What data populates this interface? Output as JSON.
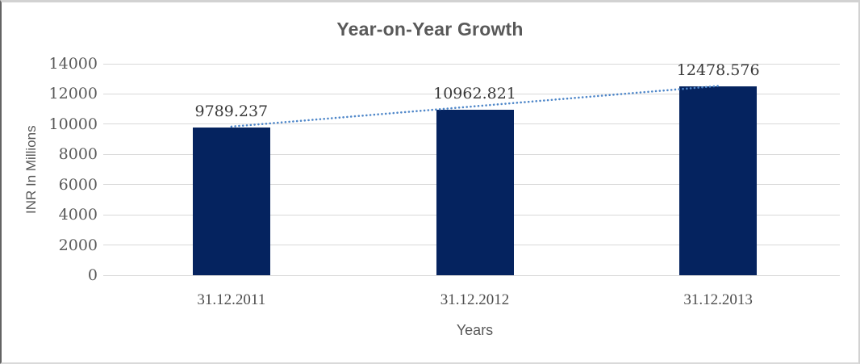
{
  "chart_data": {
    "type": "bar",
    "title": "Year-on-Year Growth",
    "categories": [
      "31.12.2011",
      "31.12.2012",
      "31.12.2013"
    ],
    "values": [
      9789.237,
      10962.821,
      12478.576
    ],
    "data_labels": [
      "9789.237",
      "10962.821",
      "12478.576"
    ],
    "xlabel": "Years",
    "ylabel": "INR In Millions",
    "ylim": [
      0,
      14000
    ],
    "ytick_step": 2000,
    "ytick_labels": [
      "0",
      "2000",
      "4000",
      "6000",
      "8000",
      "10000",
      "12000",
      "14000"
    ],
    "grid": true,
    "legend": "none",
    "bar_color": "#05235f",
    "gridline_color": "#d9d9d9",
    "axis_text_color": "#595959",
    "data_label_color": "#3a3a3a",
    "trendline": {
      "type": "linear",
      "style": "dotted",
      "color": "#4f87c9"
    }
  }
}
